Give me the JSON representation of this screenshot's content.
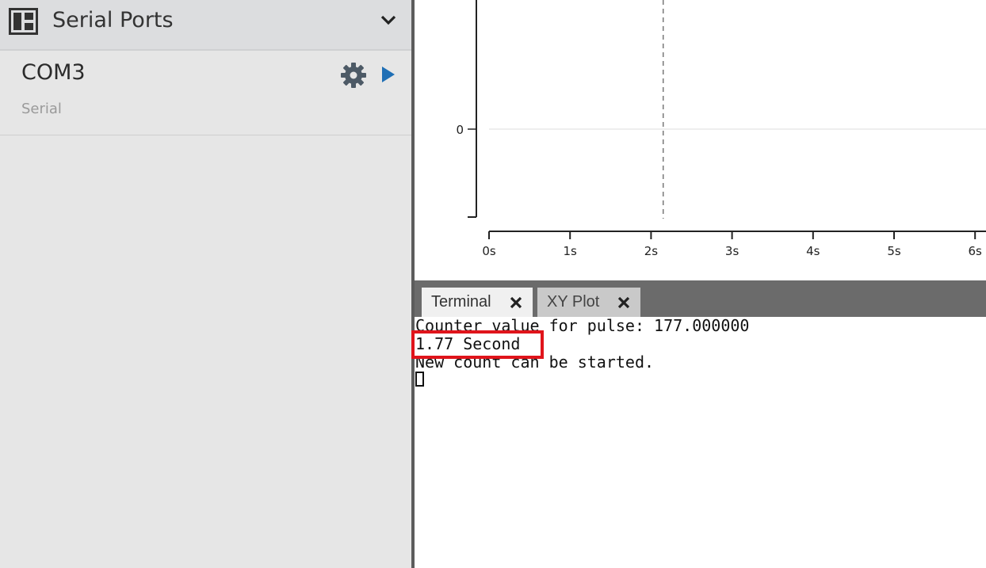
{
  "sidebar": {
    "title": "Serial Ports",
    "port": {
      "name": "COM3",
      "type": "Serial"
    }
  },
  "tabs": [
    {
      "label": "Terminal",
      "active": true
    },
    {
      "label": "XY Plot",
      "active": false
    }
  ],
  "terminal": {
    "lines": [
      "Counter value for pulse: 177.000000",
      "1.77 Second",
      "New count can be started."
    ]
  },
  "colors": {
    "accent_play": "#1f6fb5",
    "highlight": "#e0141b",
    "gear": "#4d5a66"
  },
  "icons": {
    "panel": "panel-layout-icon",
    "collapse": "chevron-down-icon",
    "settings": "gear-icon",
    "connect": "play-icon",
    "close": "close-icon"
  },
  "chart_data": {
    "type": "line",
    "x_ticks": [
      "0s",
      "1s",
      "2s",
      "3s",
      "4s",
      "5s",
      "6s"
    ],
    "y_ticks": [
      "0"
    ],
    "xlim": [
      0,
      6.1
    ],
    "cursor_x": 2.15,
    "series": [],
    "grid": false
  }
}
